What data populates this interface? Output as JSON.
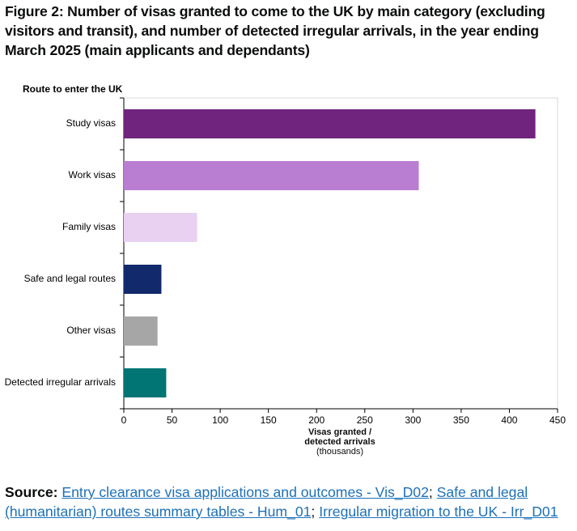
{
  "title": "Figure 2: Number of visas granted to come to the UK by main category (excluding visitors and transit), and number of detected irregular arrivals, in the year ending March 2025 (main applicants and dependants)",
  "chart_data": {
    "type": "bar",
    "orientation": "horizontal",
    "y_label": "Route to enter the UK",
    "x_label": "Visas granted / detected arrivals",
    "x_label_unit": "(thousands)",
    "categories": [
      "Study visas",
      "Work visas",
      "Family visas",
      "Safe and legal routes",
      "Other visas",
      "Detected irregular arrivals"
    ],
    "values": [
      427,
      306,
      76,
      39,
      35,
      44
    ],
    "colors": [
      "#70247e",
      "#b97ed1",
      "#e8d1f1",
      "#12296b",
      "#a6a6a6",
      "#007574"
    ],
    "xlim": [
      0,
      450
    ],
    "xticks": [
      0,
      50,
      100,
      150,
      200,
      250,
      300,
      350,
      400,
      450
    ],
    "grid": false
  },
  "source": {
    "label": "Source:",
    "separator": ";",
    "links": [
      "Entry clearance visa applications and outcomes - Vis_D02",
      "Safe and legal (humanitarian) routes summary tables - Hum_01",
      "Irregular migration to the UK - Irr_D01"
    ]
  }
}
